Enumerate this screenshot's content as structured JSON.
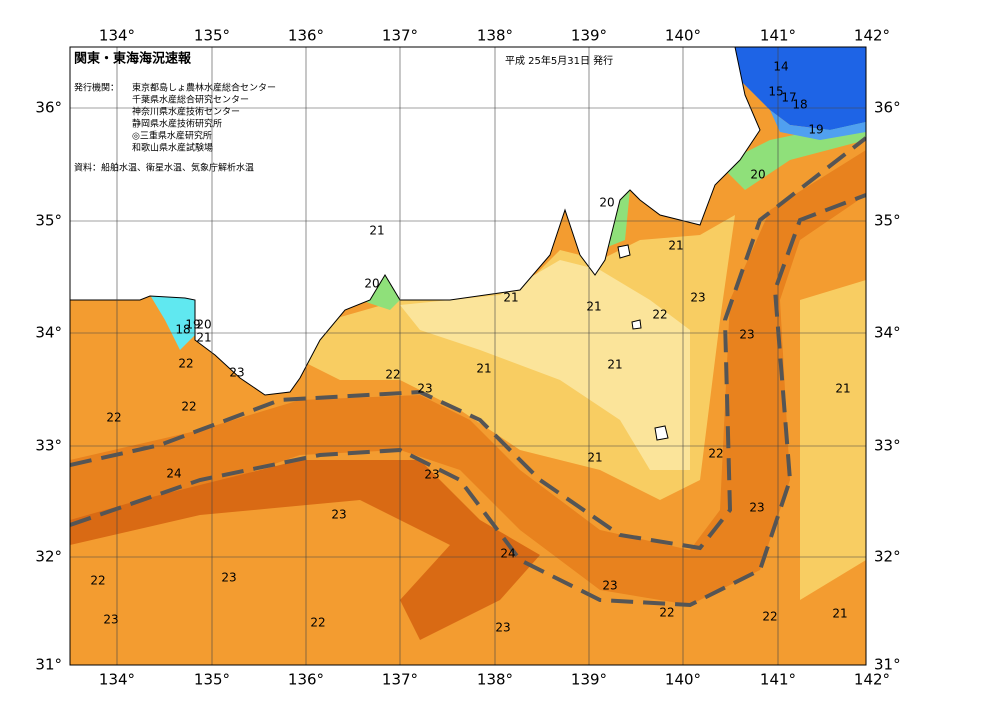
{
  "header": {
    "title": "関東・東海海況速報",
    "date": "平成 25年5月31日 発行"
  },
  "issuers": {
    "label": "発行機関：",
    "names": [
      "東京都島しょ農林水産総合センター",
      "千葉県水産総合研究センター",
      "神奈川県水産技術センター",
      "静岡県水産技術研究所",
      "◎三重県水産研究所",
      "和歌山県水産試験場"
    ]
  },
  "source": "資料：船舶水温、衛星水温、気象庁解析水温",
  "lon_labels": [
    "134°",
    "135°",
    "136°",
    "137°",
    "138°",
    "139°",
    "140°",
    "141°",
    "142°"
  ],
  "lat_labels": [
    "36°",
    "35°",
    "34°",
    "33°",
    "32°",
    "31°"
  ],
  "contour_labels": [
    14,
    15,
    17,
    18,
    19,
    20,
    20,
    21,
    21,
    20,
    21,
    21,
    22,
    23,
    23,
    18,
    19,
    20,
    21,
    22,
    23,
    22,
    23,
    21,
    21,
    21,
    22,
    22,
    24,
    23,
    21,
    22,
    23,
    23,
    24,
    23,
    22,
    23,
    22,
    22,
    21,
    23,
    22,
    23
  ]
}
